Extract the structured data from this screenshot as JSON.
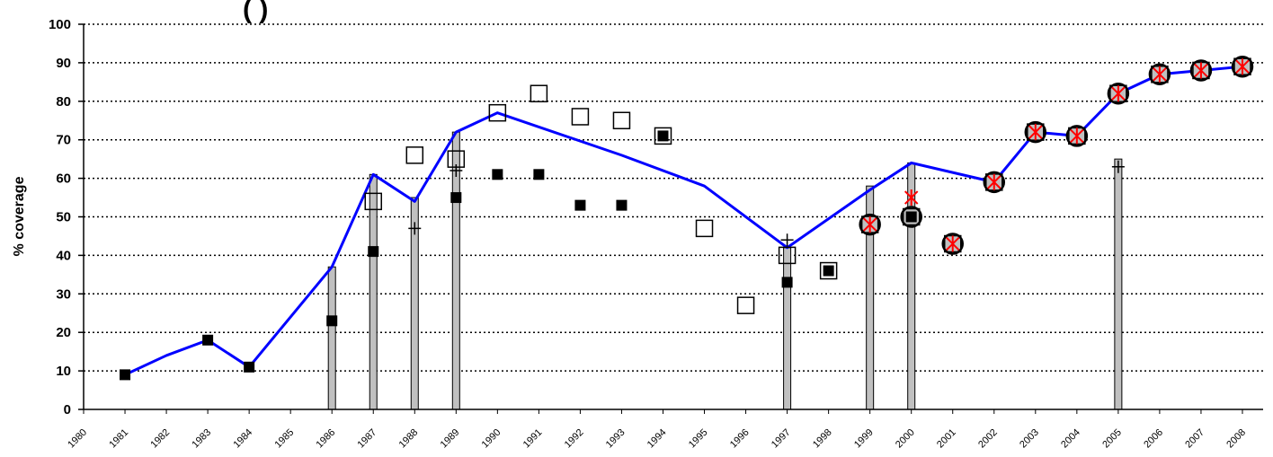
{
  "chart_data": {
    "type": "line",
    "title_fragment": "(          )",
    "ylabel": "% coverage",
    "xlabel": "",
    "ylim": [
      0,
      100
    ],
    "yticks": [
      0,
      10,
      20,
      30,
      40,
      50,
      60,
      70,
      80,
      90,
      100
    ],
    "grid": true,
    "categories": [
      "1980",
      "1981",
      "1982",
      "1983",
      "1984",
      "1985",
      "1986",
      "1987",
      "1988",
      "1989",
      "1990",
      "1991",
      "1992",
      "1993",
      "1994",
      "1995",
      "1996",
      "1997",
      "1998",
      "1999",
      "2000",
      "2001",
      "2002",
      "2003",
      "2004",
      "2005",
      "2006",
      "2007",
      "2008"
    ],
    "colors": {
      "line": "#0000ff",
      "bar_fill": "#c0c0c0",
      "bar_stroke": "#000000",
      "star": "#ff0000",
      "circle_fill": "#c0c0c0"
    },
    "series": [
      {
        "marker": "line",
        "points": [
          [
            1981,
            9
          ],
          [
            1982,
            14
          ],
          [
            1983,
            18
          ],
          [
            1984,
            11
          ],
          [
            1986,
            37
          ],
          [
            1987,
            61
          ],
          [
            1988,
            54
          ],
          [
            1989,
            72
          ],
          [
            1990,
            77
          ],
          [
            1993,
            66
          ],
          [
            1995,
            58
          ],
          [
            1997,
            42
          ],
          [
            1999,
            57
          ],
          [
            2000,
            64
          ],
          [
            2002,
            59
          ],
          [
            2003,
            72
          ],
          [
            2004,
            71
          ],
          [
            2005,
            82
          ],
          [
            2006,
            87
          ],
          [
            2007,
            88
          ],
          [
            2008,
            89
          ]
        ]
      },
      {
        "marker": "bar",
        "points": [
          [
            1986,
            37
          ],
          [
            1987,
            61
          ],
          [
            1988,
            55
          ],
          [
            1989,
            72
          ],
          [
            1997,
            42
          ],
          [
            1999,
            58
          ],
          [
            2000,
            64
          ],
          [
            2005,
            65
          ]
        ]
      },
      {
        "marker": "filled-square",
        "points": [
          [
            1981,
            9
          ],
          [
            1983,
            18
          ],
          [
            1984,
            11
          ],
          [
            1986,
            23
          ],
          [
            1987,
            41
          ],
          [
            1989,
            55
          ],
          [
            1990,
            61
          ],
          [
            1991,
            61
          ],
          [
            1992,
            53
          ],
          [
            1993,
            53
          ],
          [
            1994,
            71
          ],
          [
            1997,
            33
          ],
          [
            1998,
            36
          ],
          [
            2000,
            50
          ]
        ]
      },
      {
        "marker": "open-square",
        "points": [
          [
            1987,
            54
          ],
          [
            1988,
            66
          ],
          [
            1989,
            65
          ],
          [
            1990,
            77
          ],
          [
            1991,
            82
          ],
          [
            1992,
            76
          ],
          [
            1993,
            75
          ],
          [
            1994,
            71
          ],
          [
            1995,
            47
          ],
          [
            1996,
            27
          ],
          [
            1997,
            40
          ],
          [
            1998,
            36
          ],
          [
            1999,
            48
          ],
          [
            2000,
            50
          ],
          [
            2001,
            43
          ],
          [
            2002,
            59
          ],
          [
            2003,
            72
          ],
          [
            2004,
            71
          ],
          [
            2005,
            82
          ],
          [
            2006,
            87
          ],
          [
            2007,
            88
          ],
          [
            2008,
            89
          ]
        ]
      },
      {
        "marker": "plus",
        "points": [
          [
            1988,
            47
          ],
          [
            1989,
            62
          ],
          [
            1997,
            44
          ],
          [
            2005,
            63
          ]
        ]
      },
      {
        "marker": "circle",
        "points": [
          [
            1999,
            48
          ],
          [
            2000,
            50
          ],
          [
            2001,
            43
          ],
          [
            2002,
            59
          ],
          [
            2003,
            72
          ],
          [
            2004,
            71
          ],
          [
            2005,
            82
          ],
          [
            2006,
            87
          ],
          [
            2007,
            88
          ],
          [
            2008,
            89
          ]
        ]
      },
      {
        "marker": "star",
        "points": [
          [
            1999,
            48
          ],
          [
            2000,
            55
          ],
          [
            2001,
            43
          ],
          [
            2002,
            59
          ],
          [
            2003,
            72
          ],
          [
            2004,
            71
          ],
          [
            2005,
            82
          ],
          [
            2006,
            87
          ],
          [
            2007,
            88
          ],
          [
            2008,
            89
          ]
        ]
      }
    ]
  }
}
